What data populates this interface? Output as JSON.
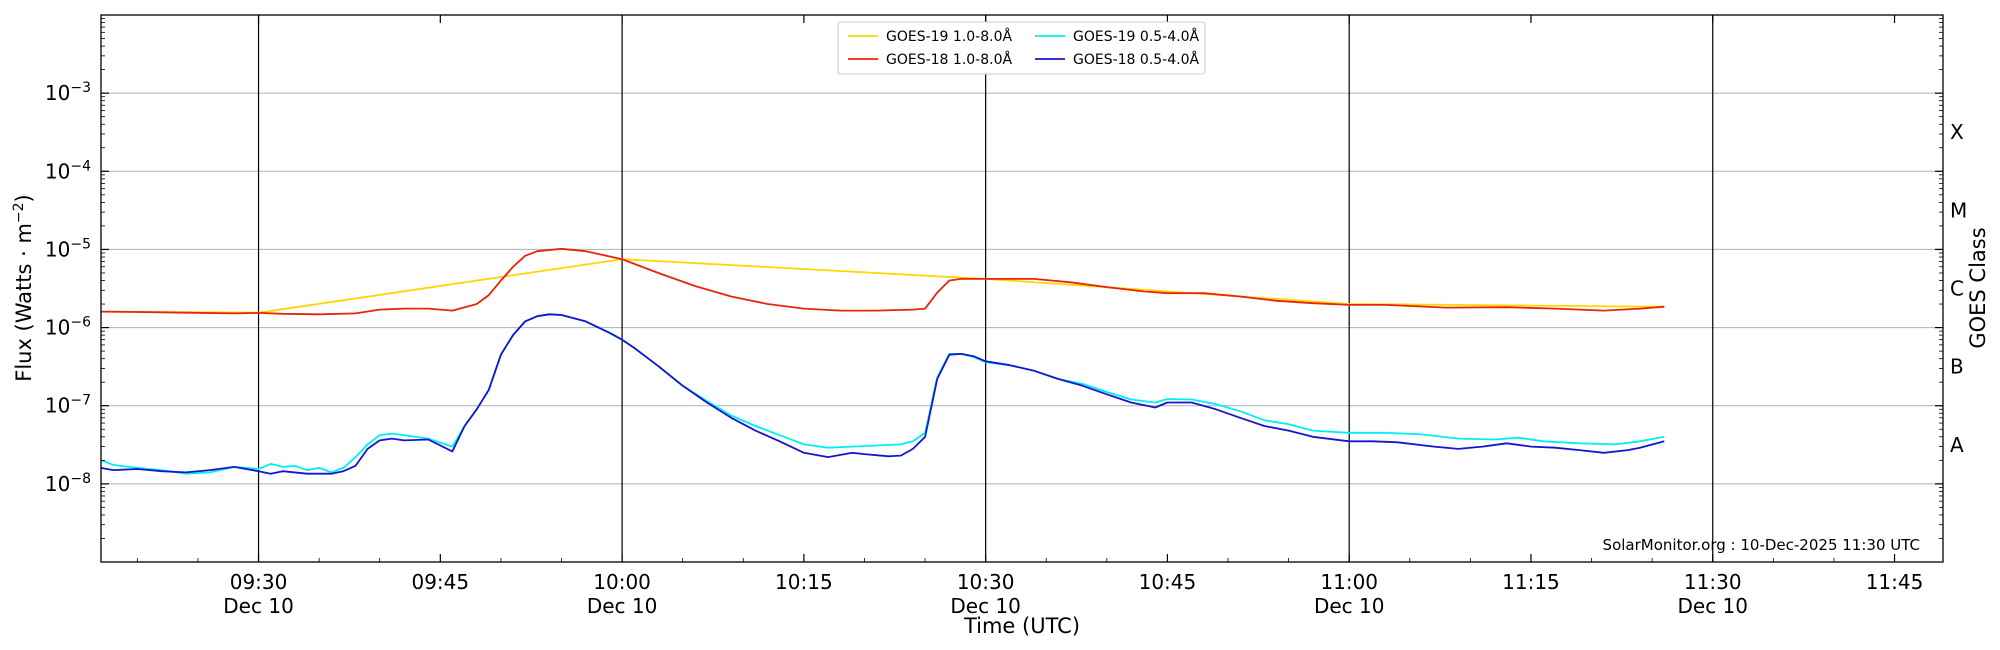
{
  "chart_data": {
    "type": "line",
    "xlabel": "Time (UTC)",
    "ylabel_main": "Flux (Watts · m",
    "ylabel_sup": "−2",
    "ylabel_close": ")",
    "right_ylabel": "GOES Class",
    "credit": "SolarMonitor.org : 10-Dec-2025 11:30 UTC",
    "log_y": true,
    "xlim": [
      "09:17",
      "11:49"
    ],
    "ylim": [
      1e-09,
      0.01
    ],
    "grid_y": true,
    "legend_placement": "top-center",
    "x_ticks": [
      {
        "time": "09:30",
        "label": "09:30",
        "date": "Dec 10"
      },
      {
        "time": "09:45",
        "label": "09:45",
        "date": ""
      },
      {
        "time": "10:00",
        "label": "10:00",
        "date": "Dec 10"
      },
      {
        "time": "10:15",
        "label": "10:15",
        "date": ""
      },
      {
        "time": "10:30",
        "label": "10:30",
        "date": "Dec 10"
      },
      {
        "time": "10:45",
        "label": "10:45",
        "date": ""
      },
      {
        "time": "11:00",
        "label": "11:00",
        "date": "Dec 10"
      },
      {
        "time": "11:15",
        "label": "11:15",
        "date": ""
      },
      {
        "time": "11:30",
        "label": "11:30",
        "date": "Dec 10"
      },
      {
        "time": "11:45",
        "label": "11:45",
        "date": ""
      }
    ],
    "vertical_lines": [
      "09:30",
      "10:00",
      "10:30",
      "11:00",
      "11:30"
    ],
    "y_ticks": [
      {
        "exp": -8,
        "base": "10",
        "sup": "−8"
      },
      {
        "exp": -7,
        "base": "10",
        "sup": "−7"
      },
      {
        "exp": -6,
        "base": "10",
        "sup": "−6"
      },
      {
        "exp": -5,
        "base": "10",
        "sup": "−5"
      },
      {
        "exp": -4,
        "base": "10",
        "sup": "−4"
      },
      {
        "exp": -3,
        "base": "10",
        "sup": "−3"
      }
    ],
    "goes_classes": [
      {
        "label": "A",
        "exp": -7.5
      },
      {
        "label": "B",
        "exp": -6.5
      },
      {
        "label": "C",
        "exp": -5.5
      },
      {
        "label": "M",
        "exp": -4.5
      },
      {
        "label": "X",
        "exp": -3.5
      }
    ],
    "series": [
      {
        "name": "GOES-19 1.0-8.0Å",
        "color": "#ffd700",
        "points": [
          [
            "09:17",
            1.6e-06
          ],
          [
            "09:30",
            1.55e-06
          ],
          [
            "10:00",
            7.5e-06
          ],
          [
            "10:30",
            4.2e-06
          ],
          [
            "11:00",
            2e-06
          ],
          [
            "11:26",
            1.85e-06
          ]
        ]
      },
      {
        "name": "GOES-18 1.0-8.0Å",
        "color": "#e8250b",
        "points": [
          [
            "09:17",
            1.6e-06
          ],
          [
            "09:20",
            1.58e-06
          ],
          [
            "09:24",
            1.55e-06
          ],
          [
            "09:28",
            1.52e-06
          ],
          [
            "09:30",
            1.54e-06
          ],
          [
            "09:32",
            1.5e-06
          ],
          [
            "09:35",
            1.48e-06
          ],
          [
            "09:38",
            1.52e-06
          ],
          [
            "09:40",
            1.7e-06
          ],
          [
            "09:42",
            1.75e-06
          ],
          [
            "09:44",
            1.75e-06
          ],
          [
            "09:46",
            1.65e-06
          ],
          [
            "09:48",
            2e-06
          ],
          [
            "09:49",
            2.6e-06
          ],
          [
            "09:50",
            4e-06
          ],
          [
            "09:51",
            6e-06
          ],
          [
            "09:52",
            8.3e-06
          ],
          [
            "09:53",
            9.5e-06
          ],
          [
            "09:55",
            1.02e-05
          ],
          [
            "09:57",
            9.5e-06
          ],
          [
            "10:00",
            7.5e-06
          ],
          [
            "10:03",
            5e-06
          ],
          [
            "10:06",
            3.4e-06
          ],
          [
            "10:09",
            2.5e-06
          ],
          [
            "10:12",
            2e-06
          ],
          [
            "10:15",
            1.75e-06
          ],
          [
            "10:18",
            1.65e-06
          ],
          [
            "10:21",
            1.65e-06
          ],
          [
            "10:24",
            1.7e-06
          ],
          [
            "10:25",
            1.75e-06
          ],
          [
            "10:26",
            2.8e-06
          ],
          [
            "10:27",
            4e-06
          ],
          [
            "10:28",
            4.2e-06
          ],
          [
            "10:30",
            4.2e-06
          ],
          [
            "10:34",
            4.2e-06
          ],
          [
            "10:37",
            3.8e-06
          ],
          [
            "10:40",
            3.3e-06
          ],
          [
            "10:43",
            2.9e-06
          ],
          [
            "10:45",
            2.75e-06
          ],
          [
            "10:48",
            2.75e-06
          ],
          [
            "10:51",
            2.5e-06
          ],
          [
            "10:54",
            2.2e-06
          ],
          [
            "10:57",
            2.05e-06
          ],
          [
            "11:00",
            1.95e-06
          ],
          [
            "11:03",
            1.95e-06
          ],
          [
            "11:08",
            1.8e-06
          ],
          [
            "11:13",
            1.82e-06
          ],
          [
            "11:17",
            1.75e-06
          ],
          [
            "11:21",
            1.65e-06
          ],
          [
            "11:24",
            1.75e-06
          ],
          [
            "11:26",
            1.85e-06
          ]
        ]
      },
      {
        "name": "GOES-19 0.5-4.0Å",
        "color": "#00f0f0",
        "points": [
          [
            "09:17",
            2e-08
          ],
          [
            "09:18",
            1.75e-08
          ],
          [
            "09:20",
            1.6e-08
          ],
          [
            "09:22",
            1.5e-08
          ],
          [
            "09:24",
            1.35e-08
          ],
          [
            "09:26",
            1.4e-08
          ],
          [
            "09:28",
            1.65e-08
          ],
          [
            "09:30",
            1.55e-08
          ],
          [
            "09:31",
            1.8e-08
          ],
          [
            "09:32",
            1.65e-08
          ],
          [
            "09:33",
            1.7e-08
          ],
          [
            "09:34",
            1.5e-08
          ],
          [
            "09:35",
            1.6e-08
          ],
          [
            "09:36",
            1.4e-08
          ],
          [
            "09:37",
            1.6e-08
          ],
          [
            "09:38",
            2.2e-08
          ],
          [
            "09:39",
            3.2e-08
          ],
          [
            "09:40",
            4.2e-08
          ],
          [
            "09:41",
            4.4e-08
          ],
          [
            "09:42",
            4.2e-08
          ],
          [
            "09:43",
            4e-08
          ],
          [
            "09:44",
            3.8e-08
          ],
          [
            "09:46",
            3e-08
          ],
          [
            "09:47",
            5.5e-08
          ],
          [
            "09:48",
            9e-08
          ],
          [
            "09:49",
            1.6e-07
          ],
          [
            "09:50",
            4.5e-07
          ],
          [
            "09:51",
            8e-07
          ],
          [
            "09:52",
            1.2e-06
          ],
          [
            "09:53",
            1.4e-06
          ],
          [
            "09:54",
            1.48e-06
          ],
          [
            "09:55",
            1.45e-06
          ],
          [
            "09:57",
            1.2e-06
          ],
          [
            "09:59",
            8.5e-07
          ],
          [
            "10:00",
            7e-07
          ],
          [
            "10:01",
            5.5e-07
          ],
          [
            "10:03",
            3.2e-07
          ],
          [
            "10:05",
            1.8e-07
          ],
          [
            "10:07",
            1.15e-07
          ],
          [
            "10:09",
            7.5e-08
          ],
          [
            "10:11",
            5.5e-08
          ],
          [
            "10:13",
            4.2e-08
          ],
          [
            "10:15",
            3.2e-08
          ],
          [
            "10:17",
            2.9e-08
          ],
          [
            "10:19",
            3e-08
          ],
          [
            "10:21",
            3.1e-08
          ],
          [
            "10:23",
            3.2e-08
          ],
          [
            "10:24",
            3.5e-08
          ],
          [
            "10:25",
            4.5e-08
          ],
          [
            "10:26",
            2.3e-07
          ],
          [
            "10:27",
            4.6e-07
          ],
          [
            "10:28",
            4.6e-07
          ],
          [
            "10:29",
            4.2e-07
          ],
          [
            "10:30",
            3.6e-07
          ],
          [
            "10:32",
            3.3e-07
          ],
          [
            "10:34",
            2.8e-07
          ],
          [
            "10:36",
            2.2e-07
          ],
          [
            "10:38",
            1.9e-07
          ],
          [
            "10:40",
            1.5e-07
          ],
          [
            "10:42",
            1.2e-07
          ],
          [
            "10:44",
            1.1e-07
          ],
          [
            "10:45",
            1.22e-07
          ],
          [
            "10:47",
            1.2e-07
          ],
          [
            "10:49",
            1.05e-07
          ],
          [
            "10:51",
            8.5e-08
          ],
          [
            "10:53",
            6.5e-08
          ],
          [
            "10:55",
            5.8e-08
          ],
          [
            "10:57",
            4.8e-08
          ],
          [
            "11:00",
            4.5e-08
          ],
          [
            "11:03",
            4.5e-08
          ],
          [
            "11:06",
            4.3e-08
          ],
          [
            "11:09",
            3.8e-08
          ],
          [
            "11:12",
            3.7e-08
          ],
          [
            "11:14",
            3.9e-08
          ],
          [
            "11:16",
            3.5e-08
          ],
          [
            "11:19",
            3.3e-08
          ],
          [
            "11:22",
            3.2e-08
          ],
          [
            "11:24",
            3.5e-08
          ],
          [
            "11:26",
            4e-08
          ]
        ]
      },
      {
        "name": "GOES-18 0.5-4.0Å",
        "color": "#1515cf",
        "points": [
          [
            "09:17",
            1.6e-08
          ],
          [
            "09:18",
            1.5e-08
          ],
          [
            "09:20",
            1.55e-08
          ],
          [
            "09:22",
            1.45e-08
          ],
          [
            "09:24",
            1.4e-08
          ],
          [
            "09:26",
            1.5e-08
          ],
          [
            "09:28",
            1.65e-08
          ],
          [
            "09:30",
            1.45e-08
          ],
          [
            "09:31",
            1.35e-08
          ],
          [
            "09:32",
            1.45e-08
          ],
          [
            "09:34",
            1.35e-08
          ],
          [
            "09:36",
            1.35e-08
          ],
          [
            "09:37",
            1.45e-08
          ],
          [
            "09:38",
            1.7e-08
          ],
          [
            "09:39",
            2.8e-08
          ],
          [
            "09:40",
            3.6e-08
          ],
          [
            "09:41",
            3.8e-08
          ],
          [
            "09:42",
            3.6e-08
          ],
          [
            "09:44",
            3.7e-08
          ],
          [
            "09:46",
            2.6e-08
          ],
          [
            "09:47",
            5.5e-08
          ],
          [
            "09:48",
            9e-08
          ],
          [
            "09:49",
            1.6e-07
          ],
          [
            "09:50",
            4.5e-07
          ],
          [
            "09:51",
            8e-07
          ],
          [
            "09:52",
            1.2e-06
          ],
          [
            "09:53",
            1.4e-06
          ],
          [
            "09:54",
            1.48e-06
          ],
          [
            "09:55",
            1.45e-06
          ],
          [
            "09:57",
            1.2e-06
          ],
          [
            "09:59",
            8.5e-07
          ],
          [
            "10:00",
            7e-07
          ],
          [
            "10:01",
            5.5e-07
          ],
          [
            "10:03",
            3.2e-07
          ],
          [
            "10:05",
            1.8e-07
          ],
          [
            "10:07",
            1.1e-07
          ],
          [
            "10:09",
            7e-08
          ],
          [
            "10:11",
            4.8e-08
          ],
          [
            "10:13",
            3.5e-08
          ],
          [
            "10:15",
            2.5e-08
          ],
          [
            "10:17",
            2.2e-08
          ],
          [
            "10:19",
            2.5e-08
          ],
          [
            "10:20",
            2.4e-08
          ],
          [
            "10:22",
            2.25e-08
          ],
          [
            "10:23",
            2.3e-08
          ],
          [
            "10:24",
            2.8e-08
          ],
          [
            "10:25",
            4e-08
          ],
          [
            "10:26",
            2.2e-07
          ],
          [
            "10:27",
            4.5e-07
          ],
          [
            "10:28",
            4.6e-07
          ],
          [
            "10:29",
            4.3e-07
          ],
          [
            "10:30",
            3.7e-07
          ],
          [
            "10:32",
            3.3e-07
          ],
          [
            "10:34",
            2.8e-07
          ],
          [
            "10:36",
            2.2e-07
          ],
          [
            "10:38",
            1.8e-07
          ],
          [
            "10:40",
            1.4e-07
          ],
          [
            "10:42",
            1.1e-07
          ],
          [
            "10:44",
            9.5e-08
          ],
          [
            "10:45",
            1.1e-07
          ],
          [
            "10:47",
            1.1e-07
          ],
          [
            "10:49",
            9e-08
          ],
          [
            "10:51",
            7e-08
          ],
          [
            "10:53",
            5.5e-08
          ],
          [
            "10:55",
            4.8e-08
          ],
          [
            "10:57",
            4e-08
          ],
          [
            "11:00",
            3.5e-08
          ],
          [
            "11:02",
            3.5e-08
          ],
          [
            "11:04",
            3.4e-08
          ],
          [
            "11:07",
            3e-08
          ],
          [
            "11:09",
            2.8e-08
          ],
          [
            "11:11",
            3e-08
          ],
          [
            "11:13",
            3.3e-08
          ],
          [
            "11:15",
            3e-08
          ],
          [
            "11:17",
            2.9e-08
          ],
          [
            "11:19",
            2.7e-08
          ],
          [
            "11:21",
            2.5e-08
          ],
          [
            "11:23",
            2.7e-08
          ],
          [
            "11:24",
            2.9e-08
          ],
          [
            "11:26",
            3.5e-08
          ]
        ]
      }
    ]
  }
}
